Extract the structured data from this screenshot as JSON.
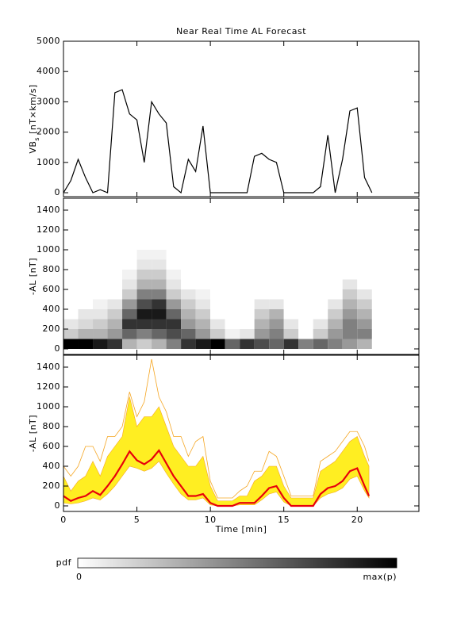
{
  "title": "Near Real Time AL Forecast",
  "colorbar": {
    "label": "pdf",
    "min_label": "0",
    "max_label": "max(p)"
  },
  "chart_data": [
    {
      "type": "line",
      "ylabel": [
        "VB",
        "s",
        " [nT×km/s]"
      ],
      "xlim": [
        0,
        24.2
      ],
      "xticks": [
        0,
        5,
        10,
        15,
        20
      ],
      "ylim": [
        -130,
        5000
      ],
      "yticks": [
        0,
        1000,
        2000,
        3000,
        4000,
        5000
      ],
      "x": [
        0,
        0.5,
        1,
        1.5,
        2,
        2.5,
        3,
        3.5,
        4,
        4.5,
        5,
        5.5,
        6,
        6.5,
        7,
        7.5,
        8,
        8.5,
        9,
        9.5,
        10,
        10.5,
        11,
        11.5,
        12,
        12.5,
        13,
        13.5,
        14,
        14.5,
        15,
        15.5,
        16,
        16.5,
        17,
        17.5,
        18,
        18.5,
        19,
        19.5,
        20,
        20.5,
        21
      ],
      "series": [
        {
          "color": "#000000",
          "values": [
            0,
            400,
            1100,
            500,
            0,
            100,
            0,
            3300,
            3400,
            2600,
            2400,
            1000,
            3000,
            2600,
            2300,
            200,
            0,
            1100,
            700,
            2200,
            0,
            0,
            0,
            0,
            0,
            0,
            1200,
            1300,
            1100,
            1000,
            0,
            0,
            0,
            0,
            0,
            200,
            1900,
            0,
            1100,
            2700,
            2800,
            500,
            0
          ]
        }
      ]
    },
    {
      "type": "heatmap",
      "ylabel": "-AL [nT]",
      "xlim": [
        0,
        24.2
      ],
      "xticks": [
        0,
        5,
        10,
        15,
        20
      ],
      "ylim": [
        -56,
        1520
      ],
      "yticks": [
        0,
        200,
        400,
        600,
        800,
        1000,
        1200,
        1400
      ],
      "xbins": [
        0,
        1,
        2,
        3,
        4,
        5,
        6,
        7,
        8,
        9,
        10,
        11,
        12,
        13,
        14,
        15,
        16,
        17,
        18,
        19,
        20,
        21
      ],
      "ybins": [
        0,
        100,
        200,
        300,
        400,
        500,
        600,
        700,
        800,
        900,
        1000,
        1100,
        1200
      ],
      "z": [
        [
          1,
          0.2,
          0.1,
          0,
          0,
          0,
          0,
          0,
          0,
          0,
          0,
          0
        ],
        [
          1,
          0.3,
          0.15,
          0.1,
          0,
          0,
          0,
          0,
          0,
          0,
          0,
          0
        ],
        [
          0.9,
          0.3,
          0.2,
          0.1,
          0.05,
          0,
          0,
          0,
          0,
          0,
          0,
          0
        ],
        [
          0.8,
          0.4,
          0.3,
          0.2,
          0.1,
          0,
          0,
          0,
          0,
          0,
          0,
          0
        ],
        [
          0.3,
          0.6,
          0.8,
          0.6,
          0.4,
          0.2,
          0.1,
          0.05,
          0,
          0,
          0,
          0
        ],
        [
          0.2,
          0.5,
          0.8,
          0.9,
          0.7,
          0.5,
          0.3,
          0.2,
          0.1,
          0.05,
          0,
          0
        ],
        [
          0.3,
          0.6,
          0.8,
          0.9,
          0.8,
          0.5,
          0.3,
          0.2,
          0.1,
          0.05,
          0,
          0
        ],
        [
          0.5,
          0.7,
          0.8,
          0.6,
          0.4,
          0.2,
          0.1,
          0.05,
          0,
          0,
          0,
          0
        ],
        [
          0.8,
          0.6,
          0.4,
          0.3,
          0.2,
          0.1,
          0,
          0,
          0,
          0,
          0,
          0
        ],
        [
          0.9,
          0.4,
          0.3,
          0.2,
          0.1,
          0.05,
          0,
          0,
          0,
          0,
          0,
          0
        ],
        [
          1,
          0.2,
          0.1,
          0,
          0,
          0,
          0,
          0,
          0,
          0,
          0,
          0
        ],
        [
          0.6,
          0.05,
          0,
          0,
          0,
          0,
          0,
          0,
          0,
          0,
          0,
          0
        ],
        [
          0.8,
          0.1,
          0,
          0,
          0,
          0,
          0,
          0,
          0,
          0,
          0,
          0
        ],
        [
          0.7,
          0.4,
          0.3,
          0.2,
          0.1,
          0,
          0,
          0,
          0,
          0,
          0,
          0
        ],
        [
          0.6,
          0.5,
          0.4,
          0.3,
          0.1,
          0,
          0,
          0,
          0,
          0,
          0,
          0
        ],
        [
          0.8,
          0.2,
          0.1,
          0,
          0,
          0,
          0,
          0,
          0,
          0,
          0,
          0
        ],
        [
          0.5,
          0,
          0,
          0,
          0,
          0,
          0,
          0,
          0,
          0,
          0,
          0
        ],
        [
          0.6,
          0.2,
          0.1,
          0,
          0,
          0,
          0,
          0,
          0,
          0,
          0,
          0
        ],
        [
          0.5,
          0.4,
          0.3,
          0.2,
          0.1,
          0,
          0,
          0,
          0,
          0,
          0,
          0
        ],
        [
          0.4,
          0.5,
          0.5,
          0.4,
          0.3,
          0.2,
          0.1,
          0,
          0,
          0,
          0,
          0
        ],
        [
          0.3,
          0.5,
          0.4,
          0.3,
          0.2,
          0.1,
          0,
          0,
          0,
          0,
          0,
          0
        ]
      ]
    },
    {
      "type": "line",
      "ylabel": "-AL [nT]",
      "xlabel": "Time [min]",
      "xlim": [
        0,
        24.2
      ],
      "xticks": [
        0,
        5,
        10,
        15,
        20
      ],
      "ylim": [
        -56,
        1520
      ],
      "yticks": [
        0,
        200,
        400,
        600,
        800,
        1000,
        1200,
        1400
      ],
      "x": [
        0,
        0.5,
        1,
        1.5,
        2,
        2.5,
        3,
        3.5,
        4,
        4.5,
        5,
        5.5,
        6,
        6.5,
        7,
        7.5,
        8,
        8.5,
        9,
        9.5,
        10,
        10.5,
        11,
        11.5,
        12,
        12.5,
        13,
        13.5,
        14,
        14.5,
        15,
        15.5,
        16,
        16.5,
        17,
        17.5,
        18,
        18.5,
        19,
        19.5,
        20,
        20.5,
        20.8
      ],
      "band": {
        "color": "#ffee22",
        "upper": [
          300,
          150,
          250,
          300,
          450,
          300,
          500,
          600,
          700,
          1100,
          800,
          900,
          900,
          1000,
          800,
          600,
          500,
          400,
          400,
          500,
          200,
          50,
          50,
          50,
          100,
          100,
          250,
          300,
          400,
          400,
          200,
          80,
          80,
          80,
          80,
          350,
          400,
          450,
          550,
          650,
          700,
          500,
          400
        ],
        "lower": [
          30,
          20,
          30,
          50,
          80,
          60,
          120,
          200,
          300,
          400,
          380,
          350,
          380,
          450,
          330,
          220,
          120,
          60,
          60,
          80,
          10,
          0,
          0,
          0,
          10,
          10,
          10,
          60,
          120,
          140,
          40,
          0,
          0,
          0,
          0,
          80,
          120,
          140,
          180,
          270,
          300,
          150,
          80
        ]
      },
      "series": [
        {
          "color": "#f5a623",
          "values": [
            400,
            300,
            400,
            600,
            600,
            450,
            700,
            700,
            800,
            1150,
            900,
            1050,
            1480,
            1100,
            950,
            700,
            700,
            500,
            650,
            700,
            250,
            80,
            80,
            80,
            150,
            200,
            350,
            350,
            550,
            500,
            300,
            100,
            100,
            100,
            100,
            450,
            500,
            550,
            650,
            750,
            750,
            600,
            450
          ]
        },
        {
          "color": "#e8000b",
          "values": [
            100,
            50,
            80,
            100,
            150,
            110,
            200,
            300,
            420,
            550,
            460,
            420,
            470,
            560,
            430,
            300,
            200,
            100,
            100,
            120,
            30,
            0,
            0,
            0,
            30,
            30,
            30,
            100,
            180,
            200,
            80,
            0,
            0,
            0,
            0,
            120,
            180,
            200,
            250,
            350,
            380,
            200,
            100
          ]
        }
      ]
    }
  ]
}
